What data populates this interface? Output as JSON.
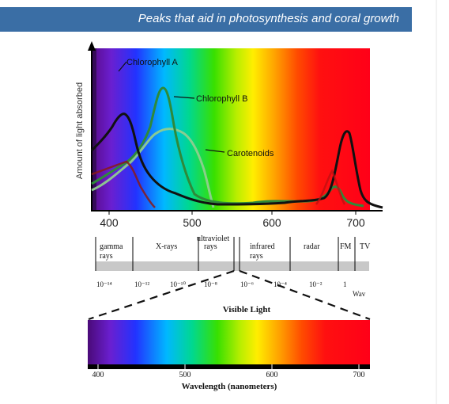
{
  "banner": {
    "title": "Peaks that aid in photosynthesis and coral growth"
  },
  "absorption_chart": {
    "ylabel": "Amount of light absorbed",
    "x_ticks": [
      "400",
      "500",
      "600",
      "700"
    ],
    "curves": [
      {
        "name": "Chlorophyll A",
        "color": "#111111"
      },
      {
        "name": "Chlorophyll B",
        "color": "#2e8a3a"
      },
      {
        "name": "Carotenoids",
        "color": "#7fbf7f"
      }
    ]
  },
  "em_spectrum": {
    "bands": [
      "gamma rays",
      "X-rays",
      "ultraviolet rays",
      "infrared rays",
      "radar",
      "FM",
      "TV"
    ],
    "band_parts": {
      "gamma": [
        "gamma",
        "rays"
      ],
      "xrays": "X-rays",
      "uv": [
        "ultraviolet",
        "rays"
      ],
      "ir": [
        "infrared",
        "rays"
      ],
      "radar": "radar",
      "fm": "FM",
      "tv": "TV"
    },
    "scale": [
      "10⁻¹⁴",
      "10⁻¹²",
      "10⁻¹⁰",
      "10⁻⁸",
      "10⁻⁶",
      "10⁻⁴",
      "10⁻²",
      "1"
    ],
    "wave_label": "Wav",
    "visible_label": "Visible Light"
  },
  "visible_spectrum": {
    "x_ticks": [
      "400",
      "500",
      "600",
      "700"
    ],
    "xlabel": "Wavelength (nanometers)"
  }
}
